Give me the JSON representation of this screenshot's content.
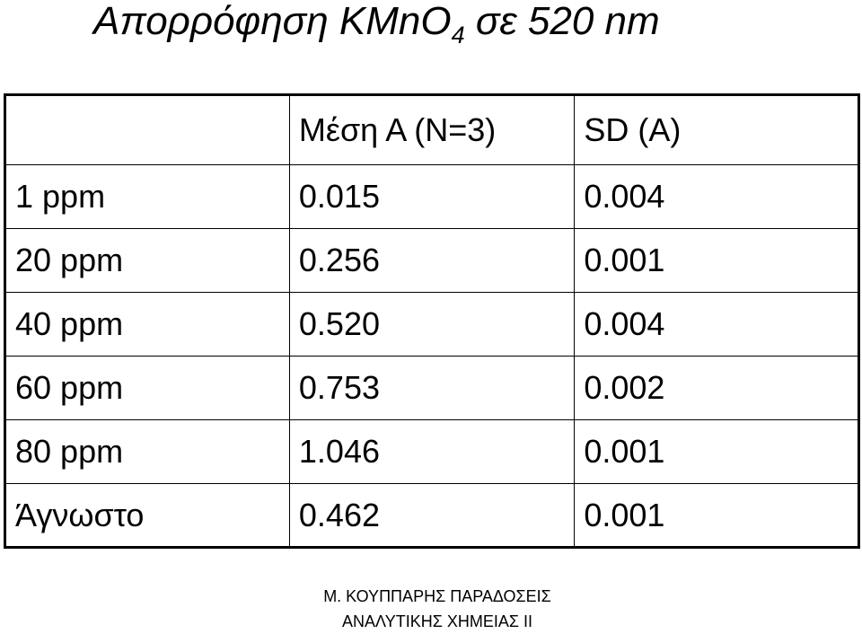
{
  "title": {
    "main": "Απορρόφηση KMnO",
    "subscript": "4",
    "rest": "σε 520 nm"
  },
  "table": {
    "headers": [
      "",
      "Μέση Α (Ν=3)",
      "SD (A)"
    ],
    "rows": [
      [
        "1 ppm",
        "0.015",
        "0.004"
      ],
      [
        "20 ppm",
        "0.256",
        "0.001"
      ],
      [
        "40 ppm",
        "0.520",
        "0.004"
      ],
      [
        "60 ppm",
        "0.753",
        "0.002"
      ],
      [
        "80 ppm",
        "1.046",
        "0.001"
      ],
      [
        "Άγνωστο",
        "0.462",
        "0.001"
      ]
    ]
  },
  "footer": {
    "line1": "Μ. ΚΟΥΠΠΑΡΗΣ ΠΑΡΑΔΟΣΕΙΣ",
    "line2": "ΑΝΑΛΥΤΙΚΗΣ ΧΗΜΕΙΑΣ ΙΙ"
  }
}
